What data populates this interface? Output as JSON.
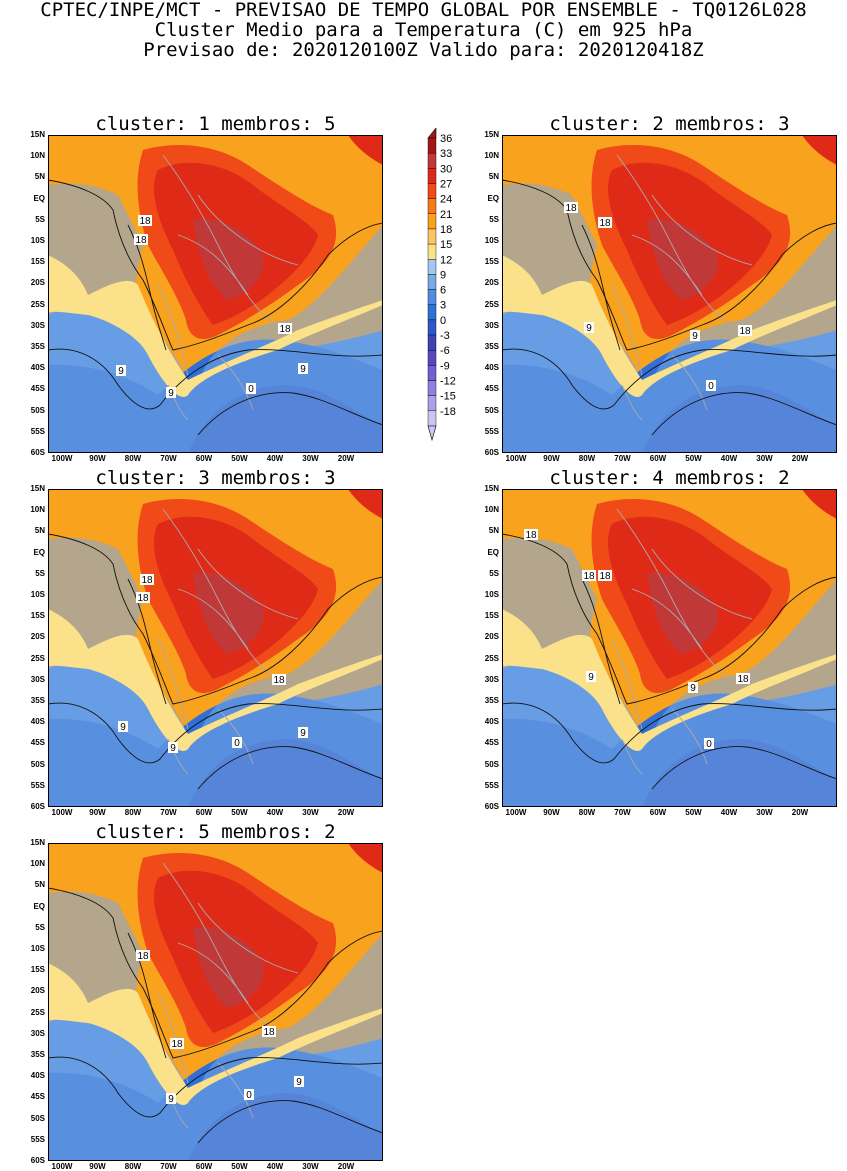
{
  "header": {
    "line1": "CPTEC/INPE/MCT - PREVISAO DE TEMPO GLOBAL POR ENSEMBLE - TQ0126L028",
    "line2": "Cluster Medio para a Temperatura (C) em 925 hPa",
    "line3": "Previsao de: 2020120100Z   Valido para: 2020120418Z"
  },
  "lat_ticks": [
    "15N",
    "10N",
    "5N",
    "EQ",
    "5S",
    "10S",
    "15S",
    "20S",
    "25S",
    "30S",
    "35S",
    "40S",
    "45S",
    "50S",
    "55S",
    "60S"
  ],
  "lon_ticks": [
    "100W",
    "90W",
    "80W",
    "70W",
    "60W",
    "50W",
    "40W",
    "30W",
    "20W"
  ],
  "legend_levels": [
    "36",
    "33",
    "30",
    "27",
    "24",
    "21",
    "18",
    "15",
    "12",
    "9",
    "6",
    "3",
    "0",
    "-3",
    "-6",
    "-9",
    "-12",
    "-15",
    "-18"
  ],
  "legend_colors": [
    "#a01818",
    "#c03838",
    "#e02a18",
    "#f04a18",
    "#f8781a",
    "#f8a21e",
    "#f9c660",
    "#fbe18a",
    "#a6c6f0",
    "#7aaae8",
    "#4e8ee0",
    "#3070d6",
    "#2a58c8",
    "#4040b8",
    "#5848c0",
    "#7060d0",
    "#9080dc",
    "#b0a0e8",
    "#d0c4f4"
  ],
  "panels": [
    {
      "title": "cluster: 1  membros: 5",
      "labels": [
        "18",
        "18",
        "9",
        "9",
        "9",
        "0",
        "18"
      ]
    },
    {
      "title": "cluster: 2  membros: 3",
      "labels": [
        "18",
        "18",
        "9",
        "9",
        "18",
        "0"
      ]
    },
    {
      "title": "cluster: 3  membros: 3",
      "labels": [
        "18",
        "18",
        "9",
        "9",
        "9",
        "0",
        "18"
      ]
    },
    {
      "title": "cluster: 4  membros: 2",
      "labels": [
        "18",
        "18",
        "18",
        "9",
        "9",
        "18",
        "0"
      ]
    },
    {
      "title": "cluster: 5  membros: 2",
      "labels": [
        "18",
        "18",
        "9",
        "18",
        "9",
        "0"
      ]
    }
  ]
}
